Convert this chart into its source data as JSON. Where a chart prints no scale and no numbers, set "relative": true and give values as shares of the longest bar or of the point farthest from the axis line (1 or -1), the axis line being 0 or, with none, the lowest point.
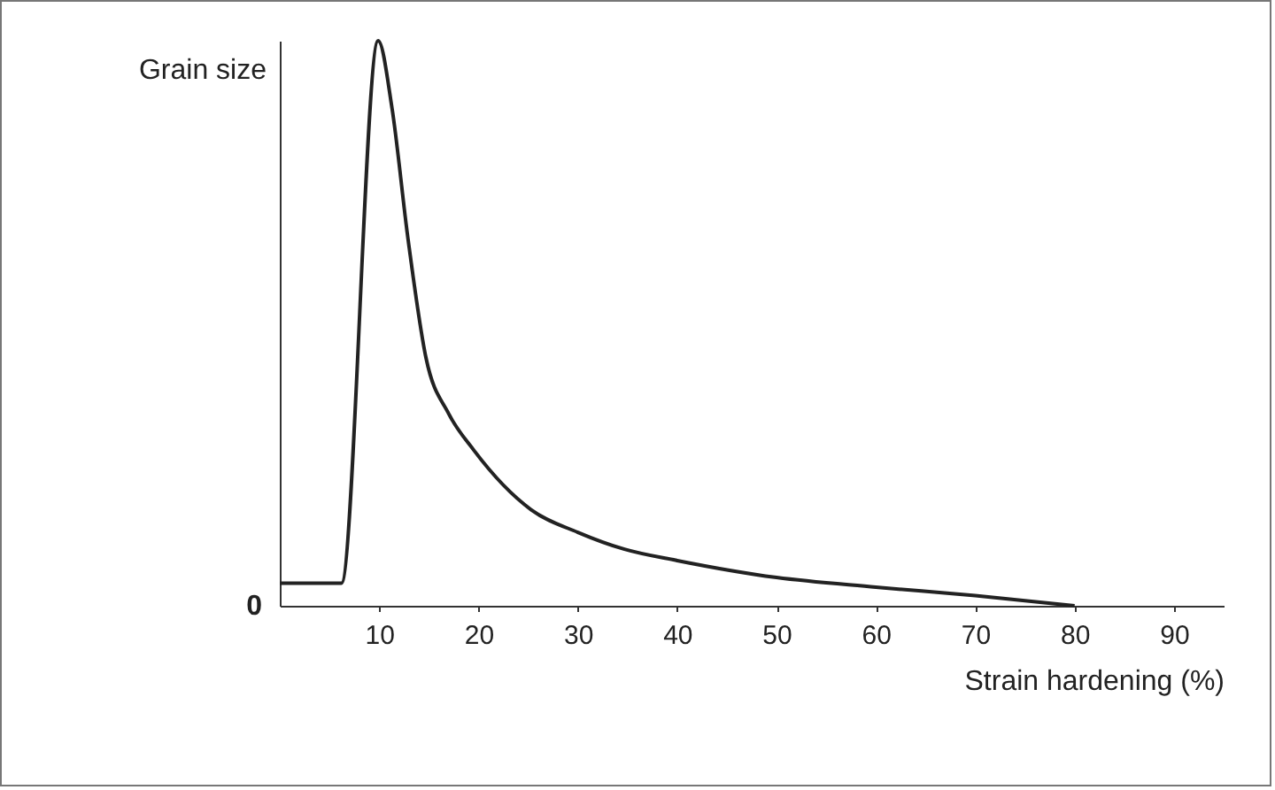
{
  "chart_data": {
    "type": "line",
    "xlabel": "Strain hardening (%)",
    "ylabel": "Grain size",
    "relative": true,
    "x": [
      0,
      6.2,
      9.9,
      11.3,
      12.9,
      14.7,
      17,
      19.5,
      25.3,
      30,
      34.7,
      40,
      50,
      60,
      70,
      80
    ],
    "series": [
      {
        "color": "#222222",
        "values": [
          0.04,
          0.04,
          1,
          0.88,
          0.65,
          0.44,
          0.34,
          0.276,
          0.17,
          0.13,
          0.1,
          0.08,
          0.05,
          0.033,
          0.018,
          0
        ]
      }
    ],
    "xlim": [
      0,
      95
    ],
    "xticks": [
      10,
      20,
      30,
      40,
      50,
      60,
      70,
      80,
      90
    ],
    "annotations": [
      "0"
    ],
    "grid": false,
    "legend": false
  }
}
